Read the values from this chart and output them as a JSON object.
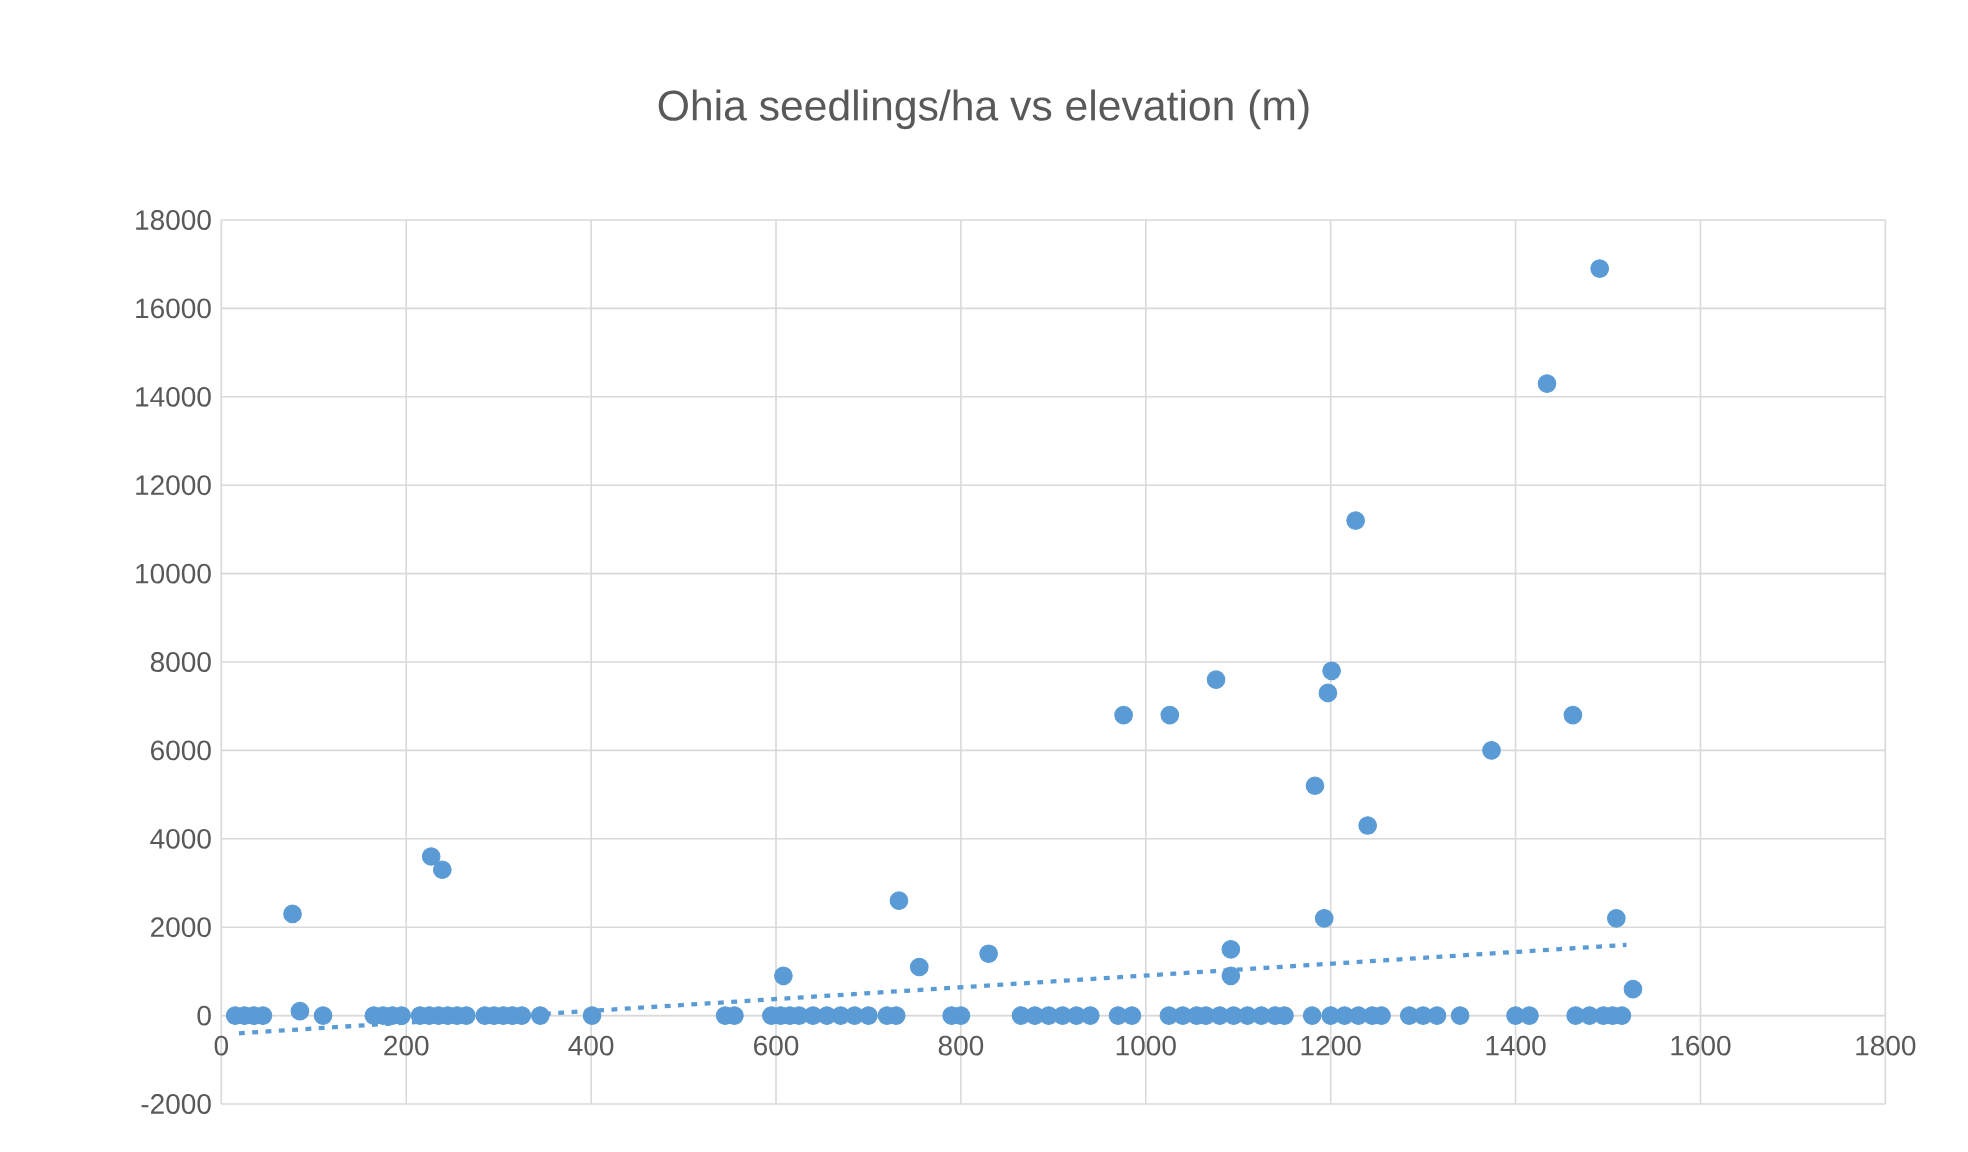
{
  "chart_data": {
    "type": "scatter",
    "title": "Ohia seedlings/ha vs elevation (m)",
    "xlim": [
      0,
      1800
    ],
    "ylim": [
      -2000,
      18000
    ],
    "xticks": [
      0,
      200,
      400,
      600,
      800,
      1000,
      1200,
      1400,
      1600,
      1800
    ],
    "yticks": [
      -2000,
      0,
      2000,
      4000,
      6000,
      8000,
      10000,
      12000,
      14000,
      16000,
      18000
    ],
    "grid": true,
    "marker": "circle",
    "series": [
      {
        "color": "#5b9bd5",
        "x": [
          1491,
          1434,
          1227,
          1076,
          1201,
          1197,
          976,
          1026,
          1462,
          1374,
          1183,
          1240,
          1193,
          1509,
          1092,
          1092,
          1527,
          77,
          227,
          239,
          733,
          755,
          830,
          608,
          85,
          15,
          25,
          35,
          45,
          110,
          165,
          175,
          185,
          195,
          215,
          225,
          235,
          245,
          255,
          265,
          285,
          295,
          305,
          315,
          325,
          345,
          401,
          545,
          555,
          595,
          605,
          615,
          625,
          640,
          655,
          670,
          685,
          700,
          720,
          730,
          790,
          800,
          865,
          880,
          895,
          910,
          925,
          940,
          970,
          985,
          1025,
          1040,
          1055,
          1065,
          1080,
          1095,
          1110,
          1125,
          1140,
          1150,
          1180,
          1200,
          1215,
          1230,
          1245,
          1255,
          1285,
          1300,
          1315,
          1340,
          1400,
          1415,
          1465,
          1480,
          1495,
          1505,
          1515
        ],
        "values": [
          16900,
          14300,
          11200,
          7600,
          7800,
          7300,
          6800,
          6800,
          6800,
          6000,
          5200,
          4300,
          2200,
          2200,
          1500,
          900,
          600,
          2300,
          3600,
          3300,
          2600,
          1100,
          1400,
          900,
          100,
          0,
          0,
          0,
          0,
          0,
          0,
          0,
          0,
          0,
          0,
          0,
          0,
          0,
          0,
          0,
          0,
          0,
          0,
          0,
          0,
          0,
          0,
          0,
          0,
          0,
          0,
          0,
          0,
          0,
          0,
          0,
          0,
          0,
          0,
          0,
          0,
          0,
          0,
          0,
          0,
          0,
          0,
          0,
          0,
          0,
          0,
          0,
          0,
          0,
          0,
          0,
          0,
          0,
          0,
          0,
          0,
          0,
          0,
          0,
          0,
          0,
          0,
          0,
          0,
          0,
          0,
          0,
          0,
          0,
          0,
          0,
          0
        ]
      },
      {
        "type": "line",
        "color": "#5b9bd5",
        "line_style": "dotted",
        "marker": "none",
        "x": [
          19,
          1520
        ],
        "values": [
          -400,
          1600
        ]
      }
    ]
  }
}
